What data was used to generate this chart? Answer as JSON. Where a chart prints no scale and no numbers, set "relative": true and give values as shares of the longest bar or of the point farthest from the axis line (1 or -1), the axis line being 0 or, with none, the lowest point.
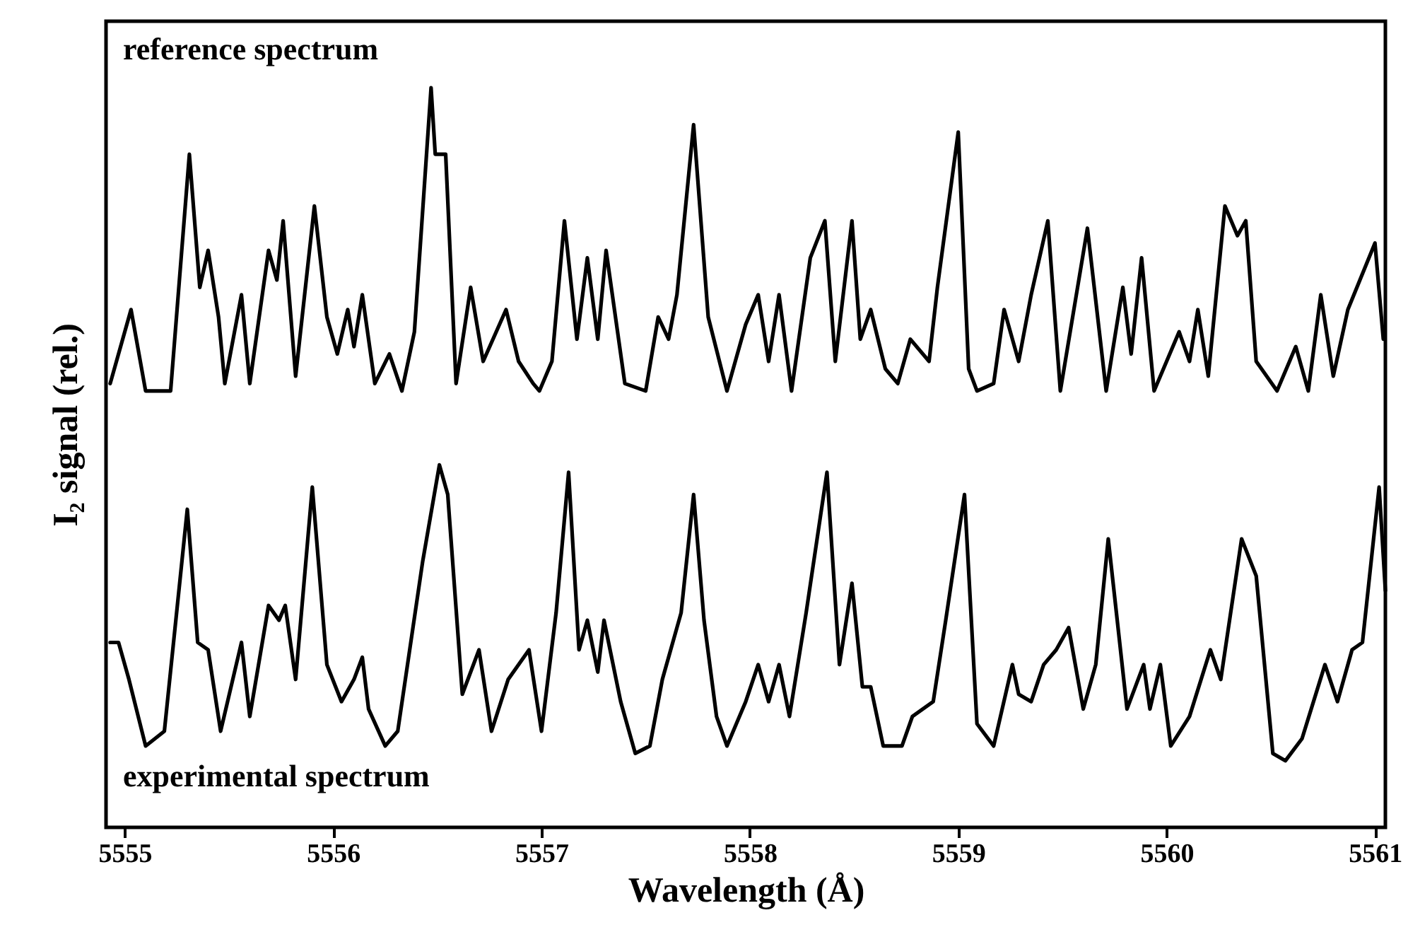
{
  "chart_data": {
    "type": "line",
    "relative": true,
    "xlabel": "Wavelength (Å)",
    "ylabel": "I₂ signal (rel.)",
    "xlim": [
      5554.91,
      5561.05
    ],
    "xticks": [
      5555,
      5556,
      5557,
      5558,
      5559,
      5560,
      5561
    ],
    "grid": false,
    "line_style": "solid",
    "marker": "none",
    "annotations": [
      "reference spectrum",
      "experimental spectrum"
    ],
    "series": [
      {
        "color": "#000000",
        "x": [
          5554.93,
          5555.03,
          5555.1,
          5555.22,
          5555.31,
          5555.36,
          5555.4,
          5555.45,
          5555.48,
          5555.56,
          5555.6,
          5555.69,
          5555.73,
          5555.76,
          5555.82,
          5555.91,
          5555.97,
          5556.02,
          5556.07,
          5556.1,
          5556.14,
          5556.2,
          5556.27,
          5556.33,
          5556.39,
          5556.47,
          5556.49,
          5556.54,
          5556.59,
          5556.66,
          5556.72,
          5556.83,
          5556.89,
          5556.96,
          5556.99,
          5557.05,
          5557.11,
          5557.17,
          5557.22,
          5557.27,
          5557.31,
          5557.4,
          5557.5,
          5557.56,
          5557.61,
          5557.65,
          5557.73,
          5557.8,
          5557.89,
          5557.98,
          5558.04,
          5558.09,
          5558.14,
          5558.2,
          5558.29,
          5558.36,
          5558.41,
          5558.49,
          5558.53,
          5558.58,
          5558.65,
          5558.71,
          5558.77,
          5558.86,
          5558.9,
          5559.0,
          5559.05,
          5559.09,
          5559.17,
          5559.22,
          5559.29,
          5559.35,
          5559.43,
          5559.49,
          5559.62,
          5559.71,
          5559.79,
          5559.83,
          5559.88,
          5559.94,
          5560.06,
          5560.11,
          5560.15,
          5560.2,
          5560.28,
          5560.34,
          5560.38,
          5560.43,
          5560.53,
          5560.62,
          5560.68,
          5560.74,
          5560.8,
          5560.87,
          5561.0,
          5561.04
        ],
        "values": [
          0.6,
          0.7,
          0.59,
          0.59,
          0.91,
          0.73,
          0.78,
          0.69,
          0.6,
          0.72,
          0.6,
          0.78,
          0.74,
          0.82,
          0.61,
          0.84,
          0.69,
          0.64,
          0.7,
          0.65,
          0.72,
          0.6,
          0.64,
          0.59,
          0.67,
          1.0,
          0.91,
          0.91,
          0.6,
          0.73,
          0.63,
          0.7,
          0.63,
          0.6,
          0.59,
          0.63,
          0.82,
          0.66,
          0.77,
          0.66,
          0.78,
          0.6,
          0.59,
          0.69,
          0.66,
          0.72,
          0.95,
          0.69,
          0.59,
          0.68,
          0.72,
          0.63,
          0.72,
          0.59,
          0.77,
          0.82,
          0.63,
          0.82,
          0.66,
          0.7,
          0.62,
          0.6,
          0.66,
          0.63,
          0.73,
          0.94,
          0.62,
          0.59,
          0.6,
          0.7,
          0.63,
          0.72,
          0.82,
          0.59,
          0.81,
          0.59,
          0.73,
          0.64,
          0.77,
          0.59,
          0.67,
          0.63,
          0.7,
          0.61,
          0.84,
          0.8,
          0.82,
          0.63,
          0.59,
          0.65,
          0.59,
          0.72,
          0.61,
          0.7,
          0.79,
          0.66
        ]
      },
      {
        "color": "#000000",
        "x": [
          5554.93,
          5554.97,
          5555.02,
          5555.1,
          5555.19,
          5555.3,
          5555.35,
          5555.4,
          5555.46,
          5555.56,
          5555.6,
          5555.69,
          5555.74,
          5555.77,
          5555.82,
          5555.9,
          5555.97,
          5556.04,
          5556.1,
          5556.14,
          5556.17,
          5556.25,
          5556.31,
          5556.43,
          5556.51,
          5556.55,
          5556.62,
          5556.7,
          5556.76,
          5556.84,
          5556.94,
          5557.0,
          5557.07,
          5557.13,
          5557.18,
          5557.22,
          5557.27,
          5557.3,
          5557.38,
          5557.45,
          5557.52,
          5557.58,
          5557.67,
          5557.73,
          5557.78,
          5557.84,
          5557.89,
          5557.98,
          5558.04,
          5558.09,
          5558.14,
          5558.19,
          5558.27,
          5558.37,
          5558.43,
          5558.49,
          5558.54,
          5558.58,
          5558.64,
          5558.73,
          5558.78,
          5558.88,
          5558.94,
          5559.03,
          5559.09,
          5559.17,
          5559.26,
          5559.29,
          5559.35,
          5559.41,
          5559.47,
          5559.53,
          5559.6,
          5559.66,
          5559.72,
          5559.81,
          5559.89,
          5559.92,
          5559.97,
          5560.02,
          5560.11,
          5560.21,
          5560.26,
          5560.36,
          5560.43,
          5560.51,
          5560.57,
          5560.65,
          5560.76,
          5560.82,
          5560.89,
          5560.94,
          5561.02,
          5561.05
        ],
        "values": [
          0.25,
          0.25,
          0.2,
          0.11,
          0.13,
          0.43,
          0.25,
          0.24,
          0.13,
          0.25,
          0.15,
          0.3,
          0.28,
          0.3,
          0.2,
          0.46,
          0.22,
          0.17,
          0.2,
          0.23,
          0.16,
          0.11,
          0.13,
          0.36,
          0.49,
          0.45,
          0.18,
          0.24,
          0.13,
          0.2,
          0.24,
          0.13,
          0.29,
          0.48,
          0.24,
          0.28,
          0.21,
          0.28,
          0.17,
          0.1,
          0.11,
          0.2,
          0.29,
          0.45,
          0.28,
          0.15,
          0.11,
          0.17,
          0.22,
          0.17,
          0.22,
          0.15,
          0.29,
          0.48,
          0.22,
          0.33,
          0.19,
          0.19,
          0.11,
          0.11,
          0.15,
          0.17,
          0.28,
          0.45,
          0.14,
          0.11,
          0.22,
          0.18,
          0.17,
          0.22,
          0.24,
          0.27,
          0.16,
          0.22,
          0.39,
          0.16,
          0.22,
          0.16,
          0.22,
          0.11,
          0.15,
          0.24,
          0.2,
          0.39,
          0.34,
          0.1,
          0.09,
          0.12,
          0.22,
          0.17,
          0.24,
          0.25,
          0.46,
          0.32
        ]
      }
    ]
  }
}
